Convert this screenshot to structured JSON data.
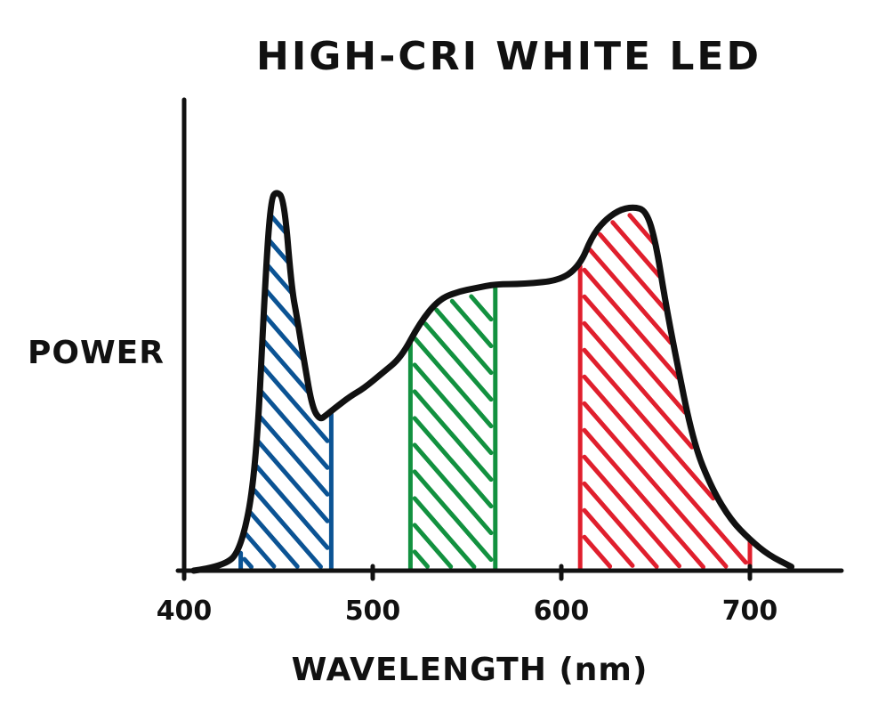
{
  "chart_data": {
    "type": "area",
    "title": "HIGH-CRI WHITE LED",
    "xlabel": "WAVELENGTH (nm)",
    "ylabel": "POWER",
    "xlim": [
      400,
      750
    ],
    "ylim": [
      0,
      1.0
    ],
    "x_ticks": [
      400,
      500,
      600,
      700
    ],
    "grid": false,
    "series": [
      {
        "x": [
          405,
          420,
          430,
          438,
          443,
          446,
          449,
          453,
          457,
          460,
          464,
          468,
          472,
          475,
          480,
          488,
          495,
          505,
          515,
          525,
          535,
          545,
          555,
          565,
          580,
          600,
          610,
          616,
          622,
          630,
          638,
          645,
          650,
          655,
          660,
          670,
          680,
          690,
          700,
          710,
          722
        ],
        "values": [
          0.0,
          0.01,
          0.05,
          0.25,
          0.75,
          0.96,
          0.98,
          0.96,
          0.73,
          0.65,
          0.53,
          0.42,
          0.39,
          0.4,
          0.42,
          0.45,
          0.47,
          0.51,
          0.55,
          0.64,
          0.7,
          0.72,
          0.73,
          0.74,
          0.74,
          0.75,
          0.79,
          0.86,
          0.9,
          0.93,
          0.94,
          0.93,
          0.85,
          0.7,
          0.57,
          0.33,
          0.21,
          0.13,
          0.08,
          0.04,
          0.01
        ]
      }
    ],
    "bands": [
      {
        "name": "blue",
        "range": [
          430,
          478
        ],
        "color": "#0b5394"
      },
      {
        "name": "green",
        "range": [
          520,
          565
        ],
        "color": "#12913f"
      },
      {
        "name": "red",
        "range": [
          610,
          700
        ],
        "color": "#e01f2d"
      }
    ]
  }
}
